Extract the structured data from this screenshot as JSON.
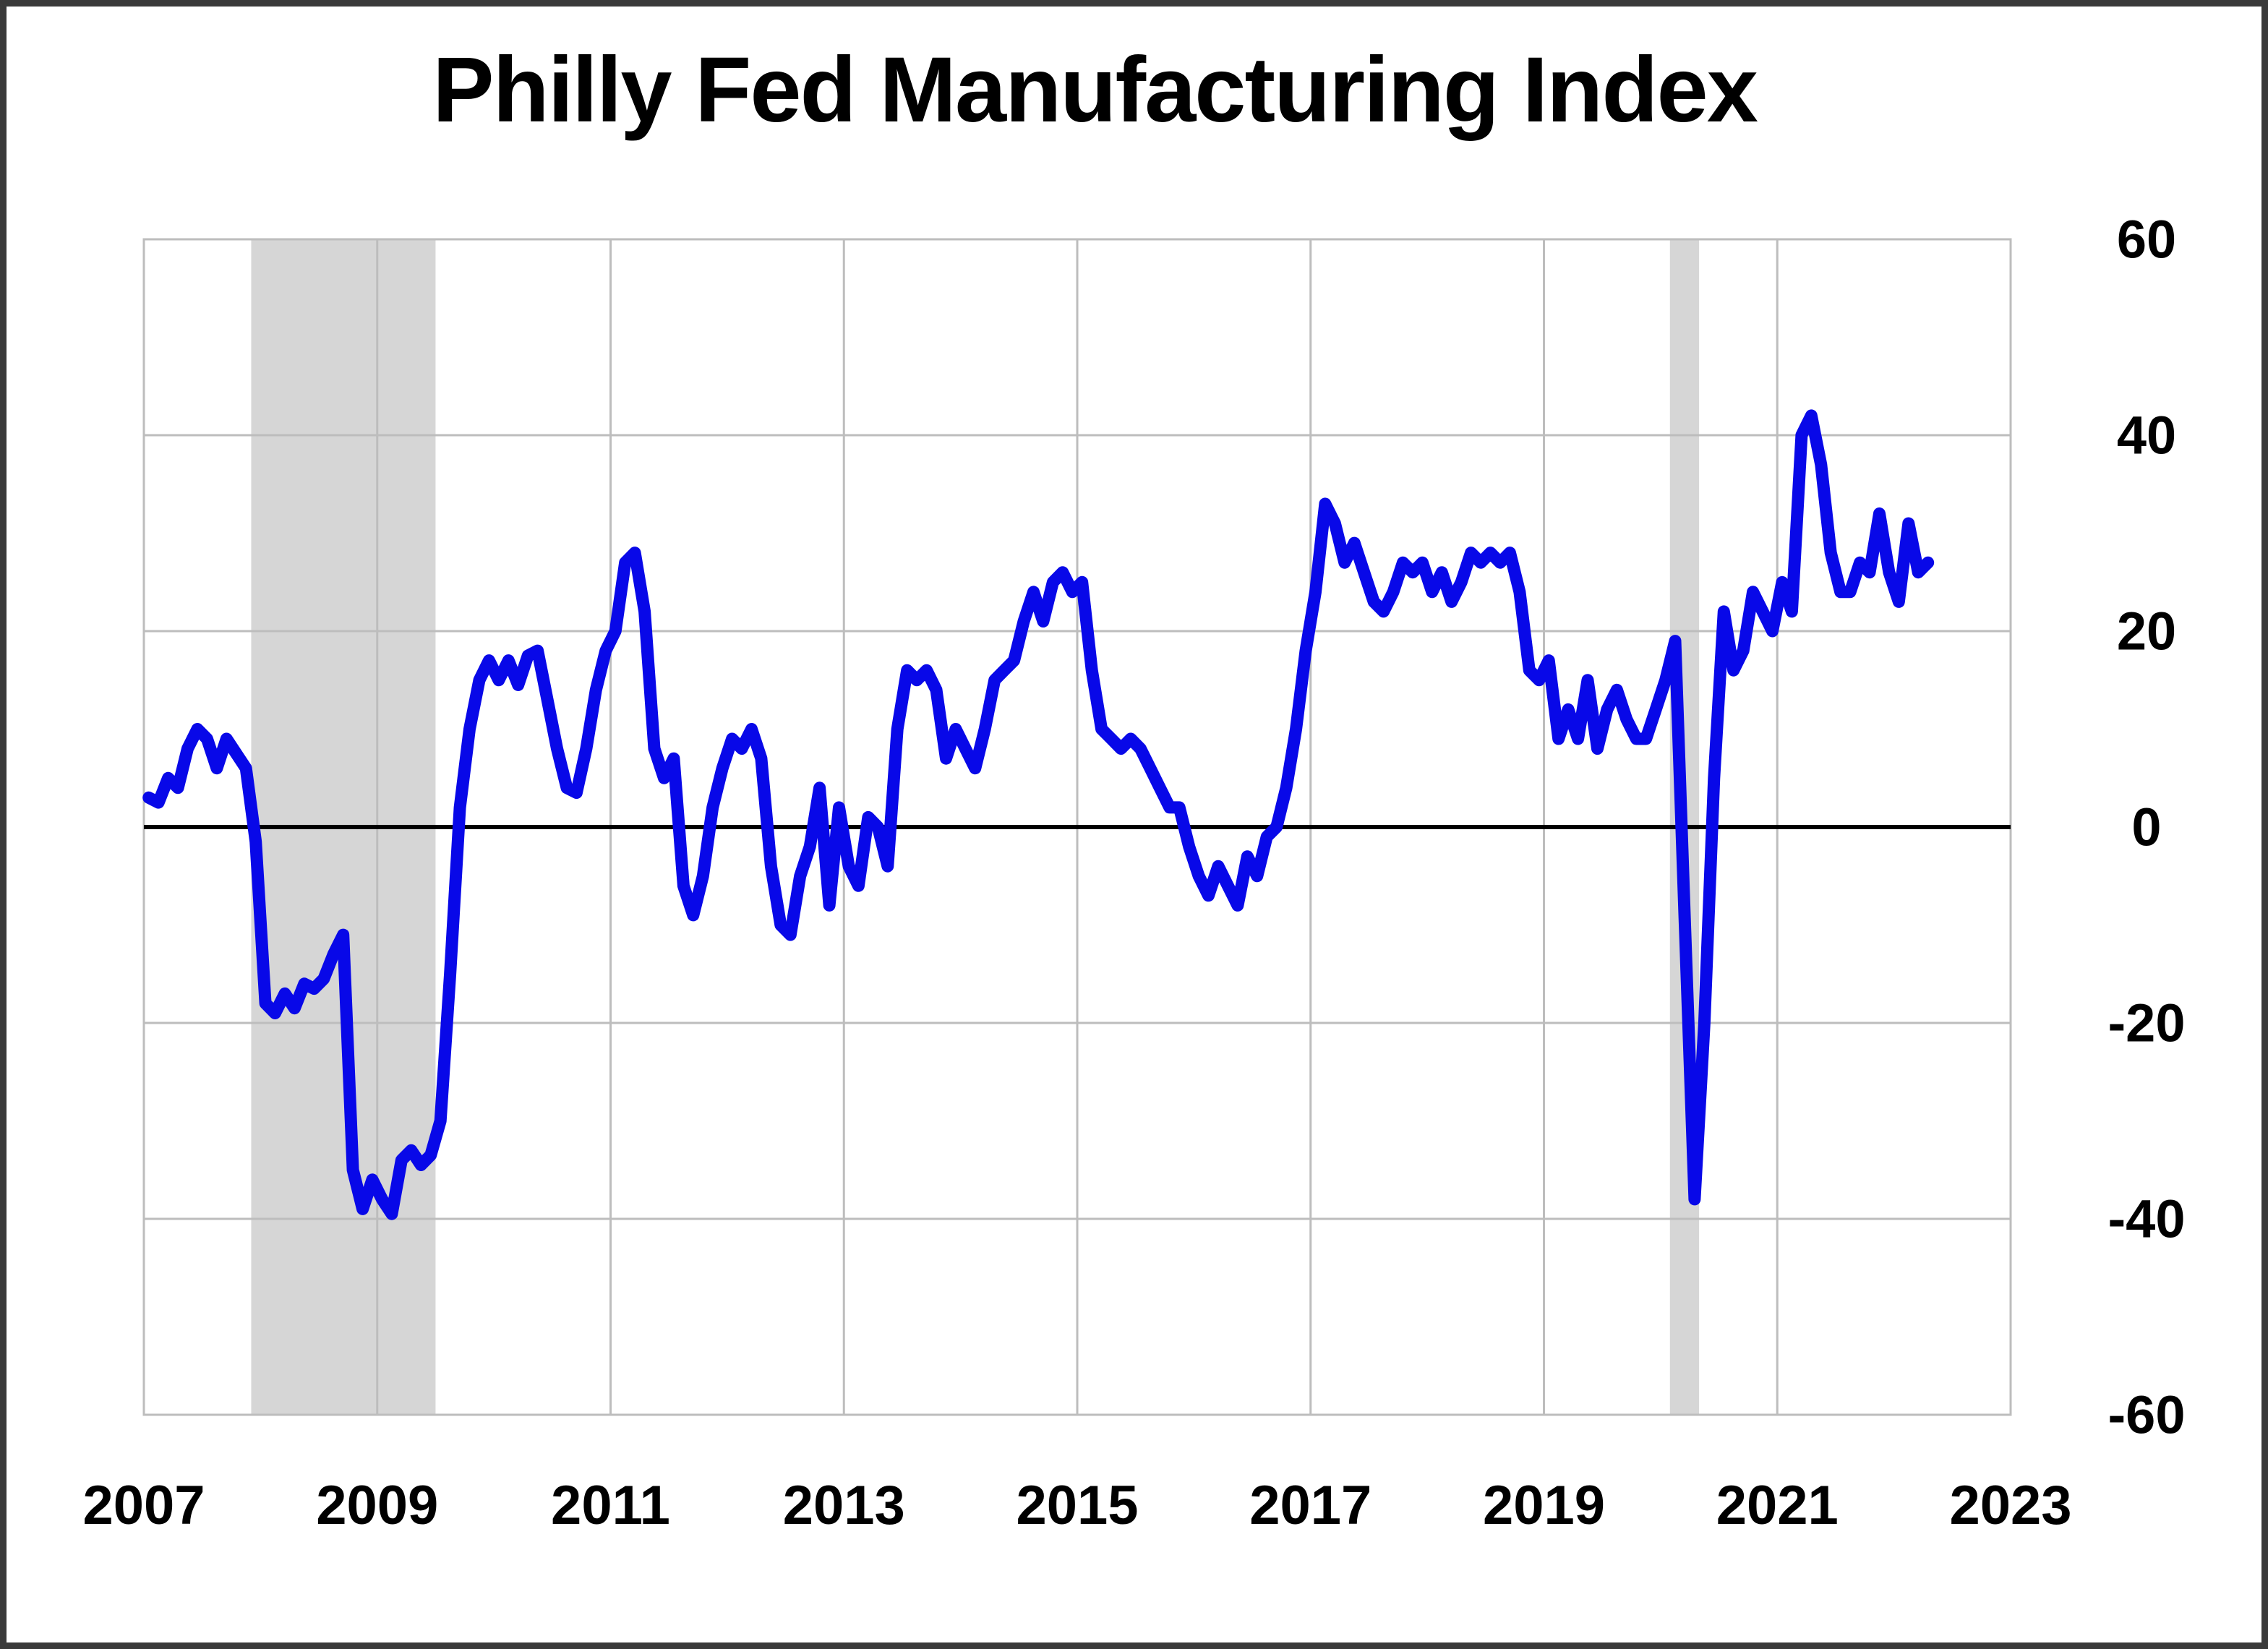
{
  "chart_data": {
    "type": "line",
    "title": "Philly Fed Manufacturing Index",
    "xlabel": "",
    "ylabel": "",
    "ylim": [
      -60,
      60
    ],
    "y_tick_step": 20,
    "grid": true,
    "legend": "none",
    "x_tick_labels": [
      "2007",
      "2009",
      "2011",
      "2013",
      "2015",
      "2017",
      "2019",
      "2021",
      "2023"
    ],
    "y_tick_labels": [
      "60",
      "40",
      "20",
      "0",
      "-20",
      "-40",
      "-60"
    ],
    "line_color": "#0808e8",
    "zero_line_color": "#000000",
    "grid_color": "#bdbdbd",
    "recession_band_color": "#d6d6d6",
    "recession_bands": [
      {
        "start": 2007.92,
        "end": 2009.5
      },
      {
        "start": 2020.08,
        "end": 2020.33
      }
    ],
    "series": [
      {
        "name": "Philly Fed Manufacturing Index",
        "frequency": "monthly",
        "start": "2007-01",
        "end": "2022-04",
        "values": [
          3,
          2.5,
          5,
          4,
          8,
          10,
          9,
          6,
          9,
          7.5,
          6,
          -1.5,
          -18,
          -19,
          -17,
          -18.5,
          -16,
          -16.5,
          -15.5,
          -13,
          -11,
          -35,
          -39,
          -36,
          -38,
          -39.5,
          -34,
          -33,
          -34.5,
          -33.5,
          -30,
          -15,
          2,
          10,
          15,
          17,
          15,
          17,
          14.5,
          17.5,
          18,
          13,
          8,
          4,
          3.5,
          8,
          14,
          18,
          20,
          27,
          28,
          22,
          8,
          5,
          7,
          -6,
          -9,
          -5,
          2,
          6,
          9,
          8,
          10,
          7,
          -4,
          -10,
          -11,
          -5,
          -2,
          4,
          -8,
          2,
          -4,
          -6,
          1,
          0,
          -4,
          10,
          16,
          15,
          16,
          14,
          7,
          10,
          8,
          6,
          10,
          15,
          16,
          17,
          21,
          24,
          21,
          25,
          26,
          24,
          25,
          16,
          10,
          9,
          8,
          9,
          8,
          6,
          4,
          2,
          2,
          -2,
          -5,
          -7,
          -4,
          -6,
          -8,
          -3,
          -5,
          -1,
          0,
          4,
          10,
          18,
          24,
          33,
          31,
          27,
          29,
          26,
          23,
          22,
          24,
          27,
          26,
          27,
          24,
          26,
          23,
          25,
          28,
          27,
          28,
          27,
          28,
          24,
          16,
          15,
          17,
          9,
          12,
          9,
          15,
          8,
          12,
          14,
          11,
          9,
          9,
          12,
          15,
          19,
          -10,
          -38,
          -20,
          5,
          22,
          16,
          18,
          24,
          22,
          20,
          25,
          22,
          40,
          42,
          37,
          28,
          24,
          24,
          27,
          26,
          32,
          26,
          23,
          31,
          26,
          27
        ]
      }
    ]
  }
}
